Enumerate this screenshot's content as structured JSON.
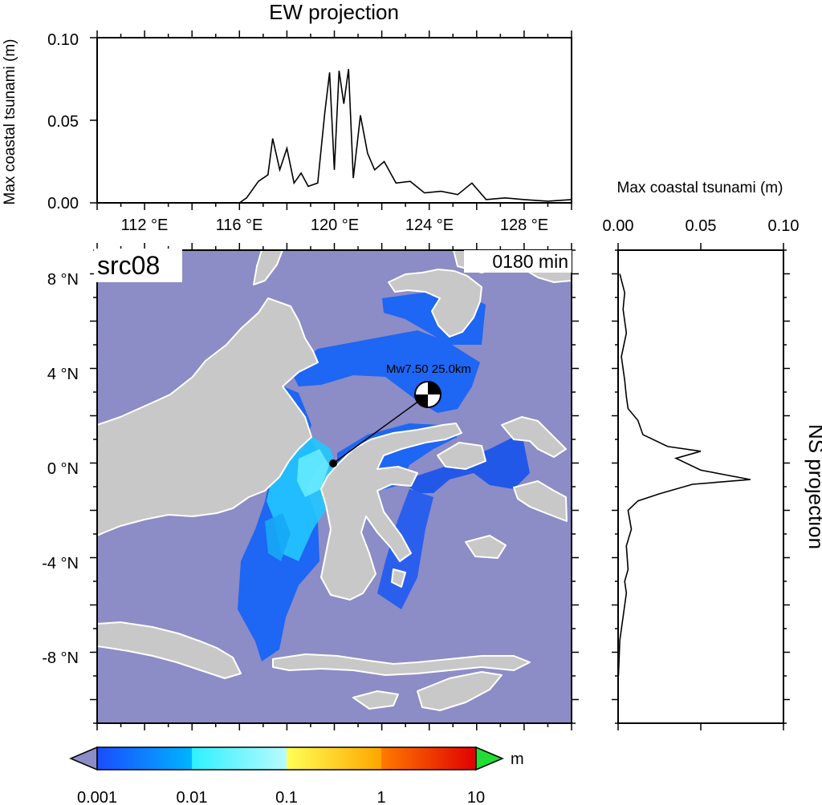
{
  "ew_panel": {
    "title": "EW projection",
    "ylabel": "Max coastal tsunami (m)",
    "yticks": [
      "0.10",
      "0.05",
      "0.00"
    ],
    "xticks": [
      "112 °E",
      "116 °E",
      "120 °E",
      "124 °E",
      "128 °E"
    ]
  },
  "ns_panel": {
    "title": "NS projection",
    "xlabel": "Max coastal tsunami (m)",
    "xticks": [
      "0.00",
      "0.05",
      "0.10"
    ]
  },
  "map_panel": {
    "source_label": "src08",
    "time_label": "0180 min",
    "quake_label": "Mw7.50  25.0km",
    "yticks": [
      "8 °N",
      "4 °N",
      "0 °N",
      "-4 °N",
      "-8 °N"
    ],
    "ocean_color": "#8c8cc6",
    "land_color": "#c8c8c8"
  },
  "colorbar": {
    "unit": "m",
    "ticks": [
      "0.001",
      "0.01",
      "0.1",
      "1",
      "10"
    ],
    "colors": [
      "#1a4cff",
      "#00b4ff",
      "#ffee33",
      "#ff3300",
      "#22dd33"
    ]
  },
  "chart_data": [
    {
      "type": "line",
      "title": "EW projection",
      "xlabel": "",
      "ylabel": "Max coastal tsunami (m)",
      "xlim": [
        110,
        130
      ],
      "ylim": [
        0,
        0.1
      ],
      "x": [
        110,
        114,
        116,
        116.3,
        116.8,
        117.2,
        117.4,
        117.7,
        118.0,
        118.3,
        118.6,
        118.9,
        119.3,
        119.6,
        119.8,
        120.0,
        120.2,
        120.4,
        120.6,
        120.8,
        121.1,
        121.4,
        121.7,
        122.1,
        122.6,
        123.2,
        123.8,
        124.5,
        125.2,
        125.8,
        126.4,
        127.2,
        128.0,
        129.0,
        130.0
      ],
      "y": [
        0,
        0,
        0,
        0.003,
        0.013,
        0.017,
        0.039,
        0.02,
        0.033,
        0.012,
        0.018,
        0.01,
        0.012,
        0.055,
        0.079,
        0.02,
        0.08,
        0.06,
        0.081,
        0.015,
        0.053,
        0.03,
        0.02,
        0.025,
        0.012,
        0.013,
        0.006,
        0.007,
        0.005,
        0.012,
        0.002,
        0.003,
        0.002,
        0.001,
        0.002
      ]
    },
    {
      "type": "line",
      "title": "NS projection",
      "xlabel": "Max coastal tsunami (m)",
      "ylabel": "",
      "xlim": [
        0,
        0.1
      ],
      "ylim": [
        -11,
        9
      ],
      "y": [
        8,
        7.2,
        6.5,
        5.5,
        4.5,
        3.5,
        2.8,
        2.3,
        1.8,
        1.2,
        0.7,
        0.5,
        0.2,
        -0.3,
        -0.7,
        -0.9,
        -1.3,
        -1.6,
        -2.0,
        -2.8,
        -3.5,
        -4.5,
        -5.0,
        -5.5,
        -6.5,
        -7.5,
        -8.5,
        -9.0
      ],
      "x": [
        0.001,
        0.004,
        0.003,
        0.005,
        0.002,
        0.004,
        0.005,
        0.006,
        0.012,
        0.015,
        0.03,
        0.05,
        0.035,
        0.05,
        0.08,
        0.045,
        0.025,
        0.012,
        0.006,
        0.008,
        0.005,
        0.006,
        0.004,
        0.005,
        0.003,
        0.001,
        0.0005,
        0.0002
      ]
    }
  ]
}
